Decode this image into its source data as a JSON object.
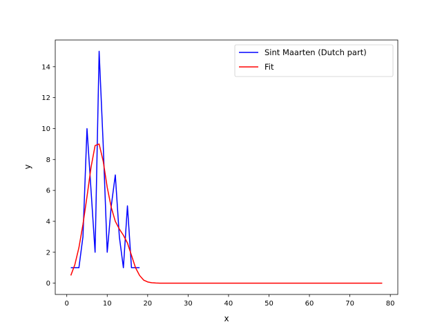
{
  "chart_data": {
    "type": "line",
    "title": "",
    "xlabel": "x",
    "ylabel": "y",
    "xlim": [
      -2.85,
      81.85
    ],
    "ylim": [
      -0.73,
      15.73
    ],
    "xticks": [
      0,
      10,
      20,
      30,
      40,
      50,
      60,
      70,
      80
    ],
    "yticks": [
      0,
      2,
      4,
      6,
      8,
      10,
      12,
      14
    ],
    "grid": false,
    "legend_position": "top-right",
    "series": [
      {
        "name": "Sint Maarten (Dutch part)",
        "color": "#0000ff",
        "x": [
          1,
          2,
          3,
          4,
          5,
          6,
          7,
          8,
          9,
          10,
          11,
          12,
          13,
          14,
          15,
          16,
          17,
          18
        ],
        "y": [
          1,
          1,
          1,
          3,
          10,
          6,
          2,
          15,
          9,
          2,
          5,
          7,
          3,
          1,
          5,
          1,
          1,
          1
        ]
      },
      {
        "name": "Fit",
        "color": "#ff0000",
        "x": [
          1,
          2,
          3,
          4,
          5,
          6,
          7,
          8,
          9,
          10,
          11,
          12,
          13,
          14,
          15,
          16,
          17,
          18,
          19,
          20,
          21,
          22,
          23,
          24,
          25,
          30,
          40,
          50,
          60,
          70,
          78
        ],
        "y": [
          0.5,
          1.2,
          2.3,
          3.8,
          5.6,
          7.5,
          8.9,
          9.0,
          7.9,
          6.2,
          4.9,
          4.0,
          3.5,
          3.1,
          2.6,
          1.8,
          1.0,
          0.5,
          0.2,
          0.08,
          0.03,
          0.01,
          0.0,
          0.0,
          0.0,
          0.0,
          0.0,
          0.0,
          0.0,
          0.0,
          0.0
        ]
      }
    ]
  }
}
